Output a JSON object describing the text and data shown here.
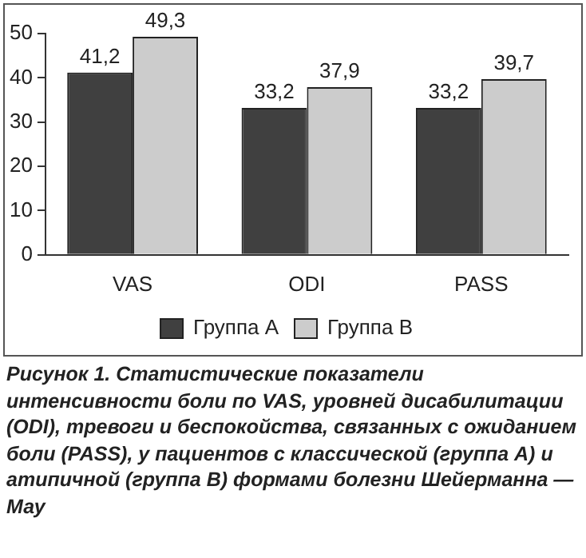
{
  "chart_data": {
    "type": "bar",
    "categories": [
      "VAS",
      "ODI",
      "PASS"
    ],
    "series": [
      {
        "name": "Группа А",
        "color": "#404040",
        "values": [
          41.2,
          33.2,
          33.2
        ],
        "value_labels": [
          "41,2",
          "33,2",
          "33,2"
        ]
      },
      {
        "name": "Группа В",
        "color": "#cccccc",
        "values": [
          49.3,
          37.9,
          39.7
        ],
        "value_labels": [
          "49,3",
          "37,9",
          "39,7"
        ]
      }
    ],
    "ylim": [
      0,
      50
    ],
    "yticks": [
      0,
      10,
      20,
      30,
      40,
      50
    ],
    "grid": false,
    "legend": "bottom",
    "annotations": [
      "Рисунок 1. Статистические показатели интенсивности боли по VAS, уровней дисабилитации (ODI), тревоги и беспокойства, связанных с ожиданием боли (PASS), у пациентов с классической (группа А) и атипичной (группа В) формами болезни Шейерманна — Мау"
    ]
  }
}
